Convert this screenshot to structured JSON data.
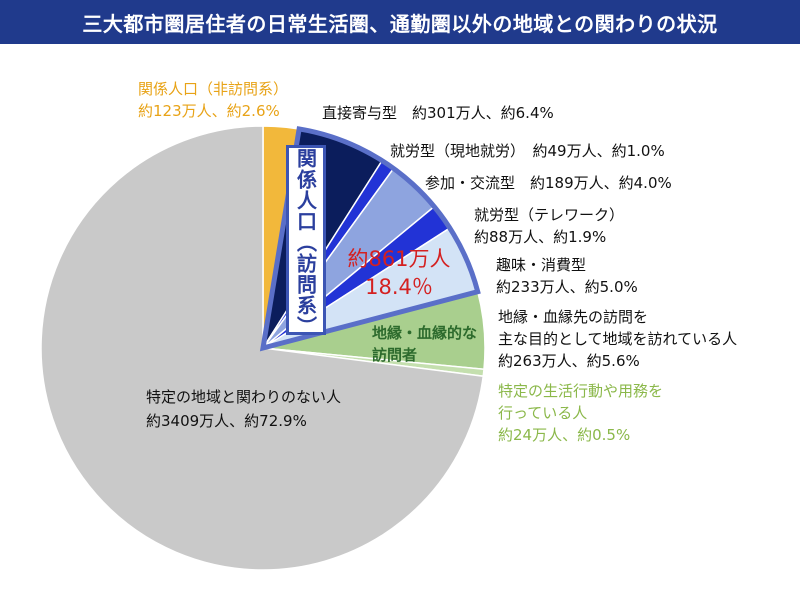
{
  "title": "三大都市圏居住者の日常生活圏、通勤圏以外の地域との関わりの状況",
  "chart_data": {
    "type": "pie",
    "slices": [
      {
        "label": "関係人口（非訪問系）",
        "value_text": "約123万人、約2.6%",
        "percent": 2.6,
        "color": "#f2b83b"
      },
      {
        "label": "直接寄与型",
        "value_text": "約301万人、約6.4%",
        "percent": 6.4,
        "color": "#0b1d5c"
      },
      {
        "label": "就労型（現地就労）",
        "value_text": "約49万人、約1.0%",
        "percent": 1.0,
        "color": "#2233d6"
      },
      {
        "label": "参加・交流型",
        "value_text": "約189万人、約4.0%",
        "percent": 4.0,
        "color": "#8ea4df"
      },
      {
        "label": "就労型（テレワーク）",
        "value_text": "約88万人、約1.9%",
        "percent": 1.9,
        "color": "#2233d6"
      },
      {
        "label": "趣味・消費型",
        "value_text": "約233万人、約5.0%",
        "percent": 5.0,
        "color": "#d3e3f6"
      },
      {
        "label": "地縁・血縁先の訪問を主な目的として地域を訪れている人",
        "value_text": "約263万人、約5.6%",
        "percent": 5.6,
        "color": "#a9cf8e"
      },
      {
        "label": "特定の生活行動や用務を行っている人",
        "value_text": "約24万人、約0.5%",
        "percent": 0.5,
        "color": "#c4dfae"
      },
      {
        "label": "特定の地域と関わりのない人",
        "value_text": "約3409万人、約72.9%",
        "percent": 72.9,
        "color": "#c9c9c9"
      }
    ],
    "group_annotations": {
      "visitor_group_label": "関係人口（訪問系）",
      "visitor_group_total": "約861万人",
      "visitor_group_percent": "18.4％",
      "kinship_group_label_line1": "地縁・血縁的な",
      "kinship_group_label_line2": "訪問者"
    }
  },
  "labels": {
    "nonvisit_line1": "関係人口（非訪問系）",
    "nonvisit_line2": "約123万人、約2.6%",
    "direct": "直接寄与型　約301万人、約6.4%",
    "work_local": "就労型（現地就労）　約49万人、約1.0%",
    "participation": "参加・交流型　約189万人、約4.0%",
    "telework_line1": "就労型（テレワーク）",
    "telework_line2": "約88万人、約1.9%",
    "hobby_line1": "趣味・消費型",
    "hobby_line2": "約233万人、約5.0%",
    "kin_line1": "地縁・血縁先の訪問を",
    "kin_line2": "主な目的として地域を訪れている人",
    "kin_line3": "約263万人、約5.6%",
    "errand_line1": "特定の生活行動や用務を",
    "errand_line2": "行っている人",
    "errand_line3": "約24万人、約0.5%",
    "none_line1": "特定の地域と関わりのない人",
    "none_line2": "約3409万人、約72.9%"
  }
}
